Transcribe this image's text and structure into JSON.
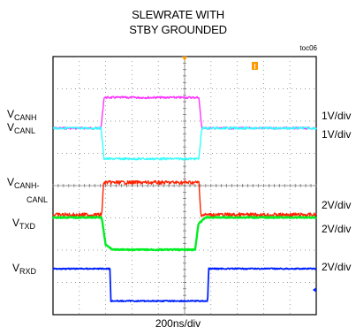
{
  "chart_data": {
    "type": "line",
    "title_line1": "SLEWRATE WITH",
    "title_line2": "STBY GROUNDED",
    "figure_tag": "toc06",
    "xlabel": "200ns/div",
    "x_divisions": 10,
    "y_divisions": 8,
    "grid": true,
    "x_range_ns": [
      0,
      2000
    ],
    "colors": {
      "canh": "#ff33ff",
      "canl": "#33ffff",
      "diff": "#ff2200",
      "txd": "#00ee22",
      "rxd": "#0022ff",
      "marker": "#ff9900"
    },
    "trace_labels": {
      "canh": {
        "main": "V",
        "sub": "CANH"
      },
      "canl": {
        "main": "V",
        "sub": "CANL"
      },
      "diff": {
        "main": "V",
        "sub": "CANH-",
        "sub2": "CANL"
      },
      "txd": {
        "main": "V",
        "sub": "TXD"
      },
      "rxd": {
        "main": "V",
        "sub": "RXD"
      }
    },
    "scales": {
      "canh": "1V/div",
      "canl": "1V/div",
      "diff": "2V/div",
      "txd": "2V/div",
      "rxd": "2V/div"
    },
    "series": [
      {
        "key": "canh",
        "units": "div",
        "x": [
          0,
          365,
          388,
          1108,
          1130,
          2000
        ],
        "y": [
          2.5,
          2.5,
          3.45,
          3.45,
          2.5,
          2.5
        ]
      },
      {
        "key": "canl",
        "units": "div",
        "x": [
          0,
          365,
          388,
          1108,
          1130,
          2000
        ],
        "y": [
          2.5,
          2.5,
          1.55,
          1.55,
          2.5,
          2.5
        ]
      },
      {
        "key": "diff",
        "units": "div",
        "x": [
          0,
          370,
          385,
          1108,
          1123,
          2000
        ],
        "y": [
          0.0,
          0.0,
          1.0,
          1.0,
          0.0,
          0.0
        ]
      },
      {
        "key": "txd",
        "units": "div",
        "x": [
          0,
          370,
          400,
          460,
          1080,
          1105,
          1160,
          2000
        ],
        "y": [
          0.0,
          0.0,
          -0.85,
          -1.0,
          -1.0,
          -0.2,
          0.0,
          0.0
        ]
      },
      {
        "key": "rxd",
        "units": "div",
        "x": [
          0,
          432,
          440,
          1175,
          1183,
          2000
        ],
        "y": [
          0.0,
          0.0,
          -1.0,
          -1.0,
          0.0,
          0.0
        ]
      }
    ]
  }
}
